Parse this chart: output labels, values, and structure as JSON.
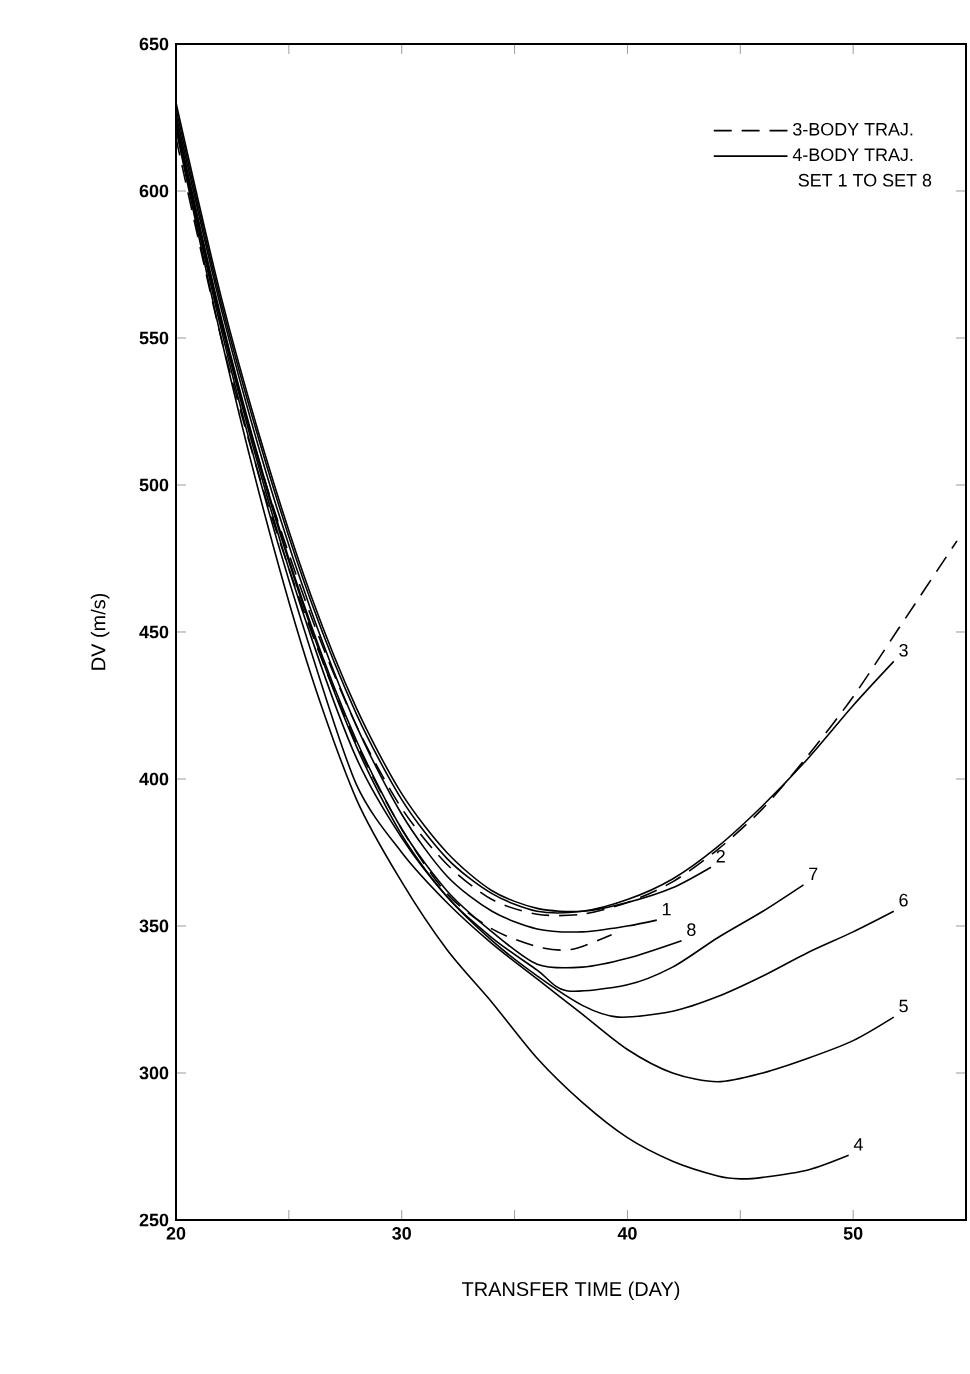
{
  "chart_data": {
    "type": "line",
    "xlabel": "TRANSFER TIME (DAY)",
    "ylabel": "DV (m/s)",
    "xlim": [
      20,
      55
    ],
    "ylim": [
      250,
      650
    ],
    "xticks": [
      20,
      {
        "value": 25,
        "label": null
      },
      30,
      {
        "value": 35,
        "label": null
      },
      40,
      {
        "value": 45,
        "label": null
      },
      50
    ],
    "yticks": [
      250,
      300,
      350,
      400,
      450,
      500,
      550,
      600,
      650
    ],
    "legend": "top right",
    "grid": false,
    "marker": "none",
    "annotations": [
      "4-BODY TRAJ.",
      "SET 1 TO SET 8"
    ],
    "series": [
      {
        "name": "3-BODY TRAJ.",
        "color": "#000000",
        "line_style": "dashed",
        "x": [
          20,
          22,
          24,
          26,
          28,
          30,
          32,
          34,
          36,
          38,
          40,
          42,
          44,
          46,
          48,
          50,
          52,
          54.6
        ],
        "values": [
          622,
          555,
          500,
          455,
          418,
          390,
          371,
          359,
          354,
          354,
          358,
          365,
          376,
          390,
          408,
          428,
          451,
          481
        ]
      },
      {
        "name": null,
        "color": "#000000",
        "line_style": "dashed",
        "x": [
          20,
          22,
          24,
          26,
          28,
          30,
          32,
          34,
          36,
          37.5,
          39.3
        ],
        "values": [
          618,
          550,
          495,
          450,
          412,
          383,
          361,
          349,
          343,
          342,
          347
        ]
      },
      {
        "name": "1",
        "color": "#000000",
        "line_style": "solid",
        "x": [
          20,
          22,
          24,
          26,
          28,
          30,
          32,
          34,
          36,
          38,
          40,
          41.3
        ],
        "values": [
          626,
          560,
          504,
          457,
          418,
          388,
          367,
          355,
          349,
          348,
          350,
          352
        ]
      },
      {
        "name": "2",
        "color": "#000000",
        "line_style": "solid",
        "x": [
          20,
          22,
          24,
          26,
          28,
          30,
          32,
          34,
          36,
          38,
          40,
          42,
          43.7
        ],
        "values": [
          630,
          564,
          509,
          462,
          424,
          395,
          375,
          362,
          356,
          355,
          358,
          363,
          370
        ]
      },
      {
        "name": "3",
        "color": "#000000",
        "line_style": "solid",
        "x": [
          20,
          22,
          24,
          26,
          28,
          30,
          32,
          34,
          36,
          38,
          40,
          42,
          44,
          46,
          48,
          50,
          51.8
        ],
        "values": [
          628,
          562,
          507,
          460,
          422,
          393,
          373,
          361,
          355,
          355,
          359,
          366,
          377,
          391,
          407,
          425,
          440
        ]
      },
      {
        "name": "4",
        "color": "#000000",
        "line_style": "solid",
        "x": [
          20,
          22,
          24,
          26,
          28,
          30,
          32,
          34,
          36,
          38,
          40,
          42,
          44,
          45,
          46,
          48,
          49.8
        ],
        "values": [
          621,
          550,
          488,
          435,
          393,
          365,
          342,
          324,
          305,
          290,
          278,
          270,
          265,
          264,
          264.5,
          267,
          272
        ]
      },
      {
        "name": "5",
        "color": "#000000",
        "line_style": "solid",
        "x": [
          20,
          22,
          24,
          26,
          28,
          30,
          32,
          34,
          36,
          38,
          40,
          42,
          44,
          46,
          48,
          50,
          51.8
        ],
        "values": [
          622,
          553,
          494,
          443,
          398,
          375,
          358,
          344,
          332,
          320,
          308,
          300,
          297,
          300,
          305,
          311,
          319
        ]
      },
      {
        "name": "6",
        "color": "#000000",
        "line_style": "solid",
        "x": [
          20,
          22,
          24,
          26,
          28,
          30,
          32,
          34,
          36,
          38,
          39.6,
          42,
          44,
          46,
          48,
          50,
          51.8
        ],
        "values": [
          623,
          555,
          497,
          448,
          407,
          380,
          360,
          345,
          333,
          323,
          319,
          321,
          326,
          333,
          341,
          348,
          355
        ]
      },
      {
        "name": "7",
        "color": "#000000",
        "line_style": "solid",
        "x": [
          20,
          22,
          24,
          26,
          28,
          30,
          32,
          34,
          36,
          37.3,
          40,
          42,
          44,
          46,
          47.8
        ],
        "values": [
          624,
          556,
          499,
          451,
          411,
          381,
          360,
          346,
          335,
          328,
          330,
          336,
          346,
          355,
          364
        ]
      },
      {
        "name": "8",
        "color": "#000000",
        "line_style": "solid",
        "x": [
          20,
          22,
          24,
          26,
          28,
          30,
          32,
          34,
          36,
          38,
          40,
          42.4
        ],
        "values": [
          624,
          557,
          500,
          452,
          413,
          383,
          362,
          348,
          337,
          336,
          339,
          345
        ]
      }
    ]
  }
}
